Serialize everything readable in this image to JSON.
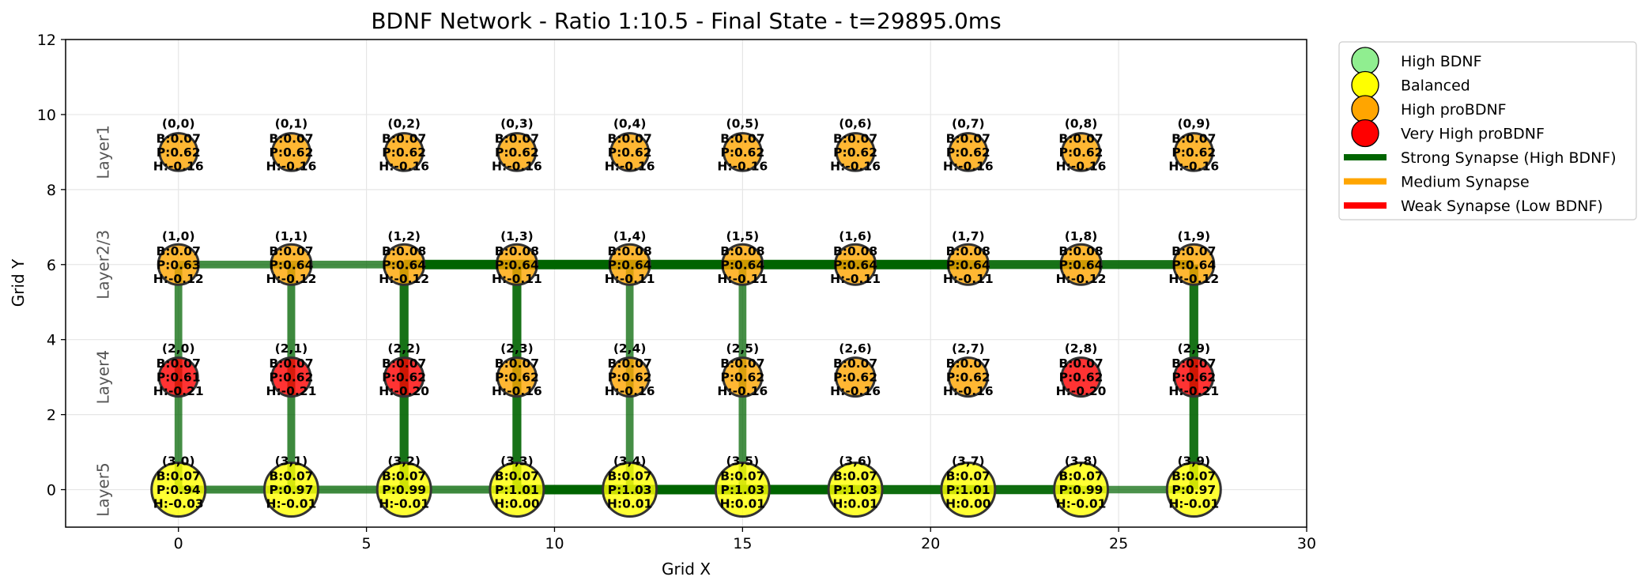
{
  "colors": {
    "node_high_bdnf": "#90ee90",
    "node_balanced": "#ffff00",
    "node_high_probdnf": "#ffa500",
    "node_very_high_probdnf": "#ff0000",
    "synapse_strong": "#006400",
    "synapse_medium": "#ffa500",
    "synapse_weak": "#ff0000"
  },
  "chart_data": {
    "type": "network",
    "title": "BDNF Network - Ratio 1:10.5 - Final State - t=29895.0ms",
    "xlabel": "Grid X",
    "ylabel": "Grid Y",
    "xlim": [
      -3,
      30
    ],
    "ylim": [
      -1,
      12
    ],
    "xticks": [
      0,
      5,
      10,
      15,
      20,
      25,
      30
    ],
    "yticks": [
      0,
      2,
      4,
      6,
      8,
      10,
      12
    ],
    "grid": true,
    "legend_position": "outside-upper-right",
    "legend": [
      {
        "label": "High BDNF",
        "kind": "node",
        "color_key": "node_high_bdnf"
      },
      {
        "label": "Balanced",
        "kind": "node",
        "color_key": "node_balanced"
      },
      {
        "label": "High proBDNF",
        "kind": "node",
        "color_key": "node_high_probdnf"
      },
      {
        "label": "Very High proBDNF",
        "kind": "node",
        "color_key": "node_very_high_probdnf"
      },
      {
        "label": "Strong Synapse (High BDNF)",
        "kind": "line",
        "color_key": "synapse_strong"
      },
      {
        "label": "Medium Synapse",
        "kind": "line",
        "color_key": "synapse_medium"
      },
      {
        "label": "Weak Synapse (Low BDNF)",
        "kind": "line",
        "color_key": "synapse_weak"
      }
    ],
    "layers": [
      {
        "name": "Layer1",
        "y": 9
      },
      {
        "name": "Layer2/3",
        "y": 6
      },
      {
        "name": "Layer4",
        "y": 3
      },
      {
        "name": "Layer5",
        "y": 0
      }
    ],
    "nodes": [
      {
        "label": "(0,0)",
        "x": 0,
        "y": 9,
        "size": 0.7,
        "state": "high_probdnf",
        "lines": [
          "B:0.07",
          "P:0.62",
          "H:-0.16"
        ]
      },
      {
        "label": "(0,1)",
        "x": 3,
        "y": 9,
        "size": 0.7,
        "state": "high_probdnf",
        "lines": [
          "B:0.07",
          "P:0.62",
          "H:-0.16"
        ]
      },
      {
        "label": "(0,2)",
        "x": 6,
        "y": 9,
        "size": 0.7,
        "state": "high_probdnf",
        "lines": [
          "B:0.07",
          "P:0.62",
          "H:-0.16"
        ]
      },
      {
        "label": "(0,3)",
        "x": 9,
        "y": 9,
        "size": 0.7,
        "state": "high_probdnf",
        "lines": [
          "B:0.07",
          "P:0.62",
          "H:-0.16"
        ]
      },
      {
        "label": "(0,4)",
        "x": 12,
        "y": 9,
        "size": 0.7,
        "state": "high_probdnf",
        "lines": [
          "B:0.07",
          "P:0.62",
          "H:-0.16"
        ]
      },
      {
        "label": "(0,5)",
        "x": 15,
        "y": 9,
        "size": 0.7,
        "state": "high_probdnf",
        "lines": [
          "B:0.07",
          "P:0.62",
          "H:-0.16"
        ]
      },
      {
        "label": "(0,6)",
        "x": 18,
        "y": 9,
        "size": 0.7,
        "state": "high_probdnf",
        "lines": [
          "B:0.07",
          "P:0.62",
          "H:-0.16"
        ]
      },
      {
        "label": "(0,7)",
        "x": 21,
        "y": 9,
        "size": 0.7,
        "state": "high_probdnf",
        "lines": [
          "B:0.07",
          "P:0.62",
          "H:-0.16"
        ]
      },
      {
        "label": "(0,8)",
        "x": 24,
        "y": 9,
        "size": 0.7,
        "state": "high_probdnf",
        "lines": [
          "B:0.07",
          "P:0.62",
          "H:-0.16"
        ]
      },
      {
        "label": "(0,9)",
        "x": 27,
        "y": 9,
        "size": 0.7,
        "state": "high_probdnf",
        "lines": [
          "B:0.07",
          "P:0.62",
          "H:-0.16"
        ]
      },
      {
        "label": "(1,0)",
        "x": 0,
        "y": 6,
        "size": 0.75,
        "state": "high_probdnf",
        "lines": [
          "B:0.07",
          "P:0.63",
          "H:-0.12"
        ]
      },
      {
        "label": "(1,1)",
        "x": 3,
        "y": 6,
        "size": 0.75,
        "state": "high_probdnf",
        "lines": [
          "B:0.07",
          "P:0.64",
          "H:-0.12"
        ]
      },
      {
        "label": "(1,2)",
        "x": 6,
        "y": 6,
        "size": 0.75,
        "state": "high_probdnf",
        "lines": [
          "B:0.08",
          "P:0.64",
          "H:-0.12"
        ]
      },
      {
        "label": "(1,3)",
        "x": 9,
        "y": 6,
        "size": 0.75,
        "state": "high_probdnf",
        "lines": [
          "B:0.08",
          "P:0.64",
          "H:-0.11"
        ]
      },
      {
        "label": "(1,4)",
        "x": 12,
        "y": 6,
        "size": 0.75,
        "state": "high_probdnf",
        "lines": [
          "B:0.08",
          "P:0.64",
          "H:-0.11"
        ]
      },
      {
        "label": "(1,5)",
        "x": 15,
        "y": 6,
        "size": 0.75,
        "state": "high_probdnf",
        "lines": [
          "B:0.08",
          "P:0.64",
          "H:-0.11"
        ]
      },
      {
        "label": "(1,6)",
        "x": 18,
        "y": 6,
        "size": 0.75,
        "state": "high_probdnf",
        "lines": [
          "B:0.08",
          "P:0.64",
          "H:-0.11"
        ]
      },
      {
        "label": "(1,7)",
        "x": 21,
        "y": 6,
        "size": 0.75,
        "state": "high_probdnf",
        "lines": [
          "B:0.08",
          "P:0.64",
          "H:-0.11"
        ]
      },
      {
        "label": "(1,8)",
        "x": 24,
        "y": 6,
        "size": 0.75,
        "state": "high_probdnf",
        "lines": [
          "B:0.08",
          "P:0.64",
          "H:-0.12"
        ]
      },
      {
        "label": "(1,9)",
        "x": 27,
        "y": 6,
        "size": 0.75,
        "state": "high_probdnf",
        "lines": [
          "B:0.07",
          "P:0.64",
          "H:-0.12"
        ]
      },
      {
        "label": "(2,0)",
        "x": 0,
        "y": 3,
        "size": 0.72,
        "state": "very_high_probdnf",
        "lines": [
          "B:0.07",
          "P:0.61",
          "H:-0.21"
        ]
      },
      {
        "label": "(2,1)",
        "x": 3,
        "y": 3,
        "size": 0.72,
        "state": "very_high_probdnf",
        "lines": [
          "B:0.07",
          "P:0.62",
          "H:-0.21"
        ]
      },
      {
        "label": "(2,2)",
        "x": 6,
        "y": 3,
        "size": 0.72,
        "state": "very_high_probdnf",
        "lines": [
          "B:0.07",
          "P:0.62",
          "H:-0.20"
        ]
      },
      {
        "label": "(2,3)",
        "x": 9,
        "y": 3,
        "size": 0.72,
        "state": "high_probdnf",
        "lines": [
          "B:0.07",
          "P:0.62",
          "H:-0.16"
        ]
      },
      {
        "label": "(2,4)",
        "x": 12,
        "y": 3,
        "size": 0.72,
        "state": "high_probdnf",
        "lines": [
          "B:0.07",
          "P:0.62",
          "H:-0.16"
        ]
      },
      {
        "label": "(2,5)",
        "x": 15,
        "y": 3,
        "size": 0.72,
        "state": "high_probdnf",
        "lines": [
          "B:0.07",
          "P:0.62",
          "H:-0.16"
        ]
      },
      {
        "label": "(2,6)",
        "x": 18,
        "y": 3,
        "size": 0.72,
        "state": "high_probdnf",
        "lines": [
          "B:0.07",
          "P:0.62",
          "H:-0.16"
        ]
      },
      {
        "label": "(2,7)",
        "x": 21,
        "y": 3,
        "size": 0.72,
        "state": "high_probdnf",
        "lines": [
          "B:0.07",
          "P:0.62",
          "H:-0.16"
        ]
      },
      {
        "label": "(2,8)",
        "x": 24,
        "y": 3,
        "size": 0.72,
        "state": "very_high_probdnf",
        "lines": [
          "B:0.07",
          "P:0.62",
          "H:-0.20"
        ]
      },
      {
        "label": "(2,9)",
        "x": 27,
        "y": 3,
        "size": 0.72,
        "state": "very_high_probdnf",
        "lines": [
          "B:0.07",
          "P:0.62",
          "H:-0.21"
        ]
      },
      {
        "label": "(3,0)",
        "x": 0,
        "y": 0,
        "size": 1.0,
        "state": "balanced",
        "lines": [
          "B:0.07",
          "P:0.94",
          "H:-0.03"
        ]
      },
      {
        "label": "(3,1)",
        "x": 3,
        "y": 0,
        "size": 1.0,
        "state": "balanced",
        "lines": [
          "B:0.07",
          "P:0.97",
          "H:-0.01"
        ]
      },
      {
        "label": "(3,2)",
        "x": 6,
        "y": 0,
        "size": 1.0,
        "state": "balanced",
        "lines": [
          "B:0.07",
          "P:0.99",
          "H:-0.01"
        ]
      },
      {
        "label": "(3,3)",
        "x": 9,
        "y": 0,
        "size": 1.0,
        "state": "balanced",
        "lines": [
          "B:0.07",
          "P:1.01",
          "H:0.00"
        ]
      },
      {
        "label": "(3,4)",
        "x": 12,
        "y": 0,
        "size": 1.0,
        "state": "balanced",
        "lines": [
          "B:0.07",
          "P:1.03",
          "H:0.01"
        ]
      },
      {
        "label": "(3,5)",
        "x": 15,
        "y": 0,
        "size": 1.0,
        "state": "balanced",
        "lines": [
          "B:0.07",
          "P:1.03",
          "H:0.01"
        ]
      },
      {
        "label": "(3,6)",
        "x": 18,
        "y": 0,
        "size": 1.0,
        "state": "balanced",
        "lines": [
          "B:0.07",
          "P:1.03",
          "H:0.01"
        ]
      },
      {
        "label": "(3,7)",
        "x": 21,
        "y": 0,
        "size": 1.0,
        "state": "balanced",
        "lines": [
          "B:0.07",
          "P:1.01",
          "H:0.00"
        ]
      },
      {
        "label": "(3,8)",
        "x": 24,
        "y": 0,
        "size": 1.0,
        "state": "balanced",
        "lines": [
          "B:0.07",
          "P:0.99",
          "H:-0.01"
        ]
      },
      {
        "label": "(3,9)",
        "x": 27,
        "y": 0,
        "size": 1.0,
        "state": "balanced",
        "lines": [
          "B:0.07",
          "P:0.97",
          "H:-0.01"
        ]
      }
    ],
    "synapses": [
      {
        "x1": 0,
        "y1": 6,
        "x2": 3,
        "y2": 6,
        "strength": "strong",
        "weight": 0.55
      },
      {
        "x1": 3,
        "y1": 6,
        "x2": 6,
        "y2": 6,
        "strength": "strong",
        "weight": 0.55
      },
      {
        "x1": 6,
        "y1": 6,
        "x2": 9,
        "y2": 6,
        "strength": "strong",
        "weight": 1.0
      },
      {
        "x1": 9,
        "y1": 6,
        "x2": 12,
        "y2": 6,
        "strength": "strong",
        "weight": 1.0
      },
      {
        "x1": 12,
        "y1": 6,
        "x2": 15,
        "y2": 6,
        "strength": "strong",
        "weight": 1.0
      },
      {
        "x1": 15,
        "y1": 6,
        "x2": 18,
        "y2": 6,
        "strength": "strong",
        "weight": 1.0
      },
      {
        "x1": 18,
        "y1": 6,
        "x2": 21,
        "y2": 6,
        "strength": "strong",
        "weight": 1.0
      },
      {
        "x1": 21,
        "y1": 6,
        "x2": 24,
        "y2": 6,
        "strength": "strong",
        "weight": 0.85
      },
      {
        "x1": 24,
        "y1": 6,
        "x2": 27,
        "y2": 6,
        "strength": "strong",
        "weight": 0.85
      },
      {
        "x1": 0,
        "y1": 0,
        "x2": 3,
        "y2": 0,
        "strength": "strong",
        "weight": 0.6
      },
      {
        "x1": 3,
        "y1": 0,
        "x2": 6,
        "y2": 0,
        "strength": "strong",
        "weight": 0.6
      },
      {
        "x1": 6,
        "y1": 0,
        "x2": 9,
        "y2": 0,
        "strength": "strong",
        "weight": 0.6
      },
      {
        "x1": 9,
        "y1": 0,
        "x2": 12,
        "y2": 0,
        "strength": "strong",
        "weight": 1.0
      },
      {
        "x1": 12,
        "y1": 0,
        "x2": 15,
        "y2": 0,
        "strength": "strong",
        "weight": 1.0
      },
      {
        "x1": 15,
        "y1": 0,
        "x2": 18,
        "y2": 0,
        "strength": "strong",
        "weight": 1.0
      },
      {
        "x1": 18,
        "y1": 0,
        "x2": 21,
        "y2": 0,
        "strength": "strong",
        "weight": 0.9
      },
      {
        "x1": 21,
        "y1": 0,
        "x2": 24,
        "y2": 0,
        "strength": "strong",
        "weight": 0.9
      },
      {
        "x1": 24,
        "y1": 0,
        "x2": 27,
        "y2": 0,
        "strength": "strong",
        "weight": 0.5
      },
      {
        "x1": 0,
        "y1": 6,
        "x2": 0,
        "y2": 3,
        "strength": "strong",
        "weight": 0.55
      },
      {
        "x1": 0,
        "y1": 3,
        "x2": 0,
        "y2": 0,
        "strength": "strong",
        "weight": 0.55
      },
      {
        "x1": 3,
        "y1": 6,
        "x2": 3,
        "y2": 3,
        "strength": "strong",
        "weight": 0.6
      },
      {
        "x1": 3,
        "y1": 3,
        "x2": 3,
        "y2": 0,
        "strength": "strong",
        "weight": 0.6
      },
      {
        "x1": 6,
        "y1": 6,
        "x2": 6,
        "y2": 3,
        "strength": "strong",
        "weight": 0.85
      },
      {
        "x1": 6,
        "y1": 3,
        "x2": 6,
        "y2": 0,
        "strength": "strong",
        "weight": 0.85
      },
      {
        "x1": 9,
        "y1": 6,
        "x2": 9,
        "y2": 3,
        "strength": "strong",
        "weight": 0.85
      },
      {
        "x1": 9,
        "y1": 3,
        "x2": 9,
        "y2": 0,
        "strength": "strong",
        "weight": 0.85
      },
      {
        "x1": 12,
        "y1": 6,
        "x2": 12,
        "y2": 3,
        "strength": "strong",
        "weight": 0.55
      },
      {
        "x1": 12,
        "y1": 3,
        "x2": 12,
        "y2": 0,
        "strength": "strong",
        "weight": 0.55
      },
      {
        "x1": 15,
        "y1": 6,
        "x2": 15,
        "y2": 3,
        "strength": "strong",
        "weight": 0.55
      },
      {
        "x1": 15,
        "y1": 3,
        "x2": 15,
        "y2": 0,
        "strength": "strong",
        "weight": 0.55
      },
      {
        "x1": 27,
        "y1": 6,
        "x2": 27,
        "y2": 3,
        "strength": "strong",
        "weight": 0.85
      },
      {
        "x1": 27,
        "y1": 3,
        "x2": 27,
        "y2": 0,
        "strength": "strong",
        "weight": 0.85
      }
    ]
  }
}
